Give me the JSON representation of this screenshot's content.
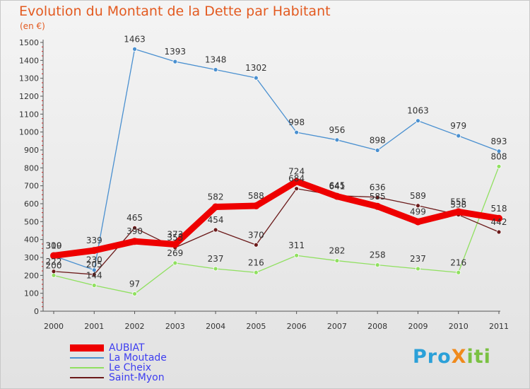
{
  "header": {
    "title": "Evolution du Montant de la Dette par Habitant",
    "subtitle": "(en €)"
  },
  "logo": {
    "text": "ProXiti",
    "colors": [
      "#2ba0d8",
      "#f08a1c",
      "#7ac142"
    ]
  },
  "chart_data": {
    "type": "line",
    "title": "Evolution du Montant de la Dette par Habitant",
    "ylabel": "(en €)",
    "xlabel": "",
    "x": [
      "2000",
      "2001",
      "2002",
      "2003",
      "2004",
      "2005",
      "2006",
      "2007",
      "2008",
      "2009",
      "2010",
      "2011"
    ],
    "ylim": [
      0,
      1500
    ],
    "yticks": [
      0,
      100,
      200,
      300,
      400,
      500,
      600,
      700,
      800,
      900,
      1000,
      1100,
      1200,
      1300,
      1400,
      1500
    ],
    "grid": false,
    "legend": "bottom-left",
    "series": [
      {
        "name": "AUBIAT",
        "color": "#ee0000",
        "values": [
          310,
          339,
          390,
          373,
          582,
          588,
          724,
          641,
          585,
          499,
          555,
          518
        ]
      },
      {
        "name": "La Moutade",
        "color": "#4a90d0",
        "values": [
          309,
          230,
          1463,
          1393,
          1348,
          1302,
          998,
          956,
          898,
          1063,
          979,
          893
        ]
      },
      {
        "name": "Le Cheix",
        "color": "#90e060",
        "values": [
          200,
          144,
          97,
          269,
          237,
          216,
          311,
          282,
          258,
          237,
          216,
          808
        ]
      },
      {
        "name": "Saint-Myon",
        "color": "#6b1a1a",
        "values": [
          222,
          205,
          465,
          355,
          454,
          370,
          684,
          645,
          636,
          589,
          538,
          442
        ]
      }
    ]
  }
}
